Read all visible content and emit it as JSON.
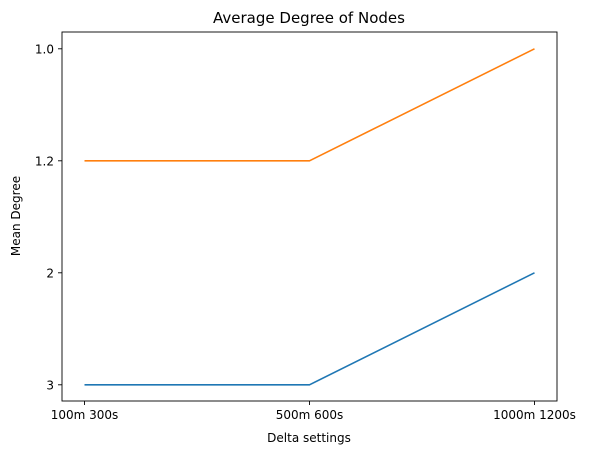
{
  "chart_data": {
    "type": "line",
    "title": "Average Degree of Nodes",
    "xlabel": "Delta settings",
    "ylabel": "Mean Degree",
    "categories": [
      "100m 300s",
      "500m 600s",
      "1000m 1200s"
    ],
    "y_ticks": [
      "1.0",
      "1.2",
      "2",
      "3"
    ],
    "y_axis_inverted": true,
    "y_axis_scale": "categorical",
    "grid": false,
    "legend": "none",
    "series": [
      {
        "values": [
          "3",
          "3",
          "2"
        ],
        "color": "#1f77b4"
      },
      {
        "values": [
          "1.2",
          "1.2",
          "1.0"
        ],
        "color": "#ff7f0e"
      }
    ]
  }
}
